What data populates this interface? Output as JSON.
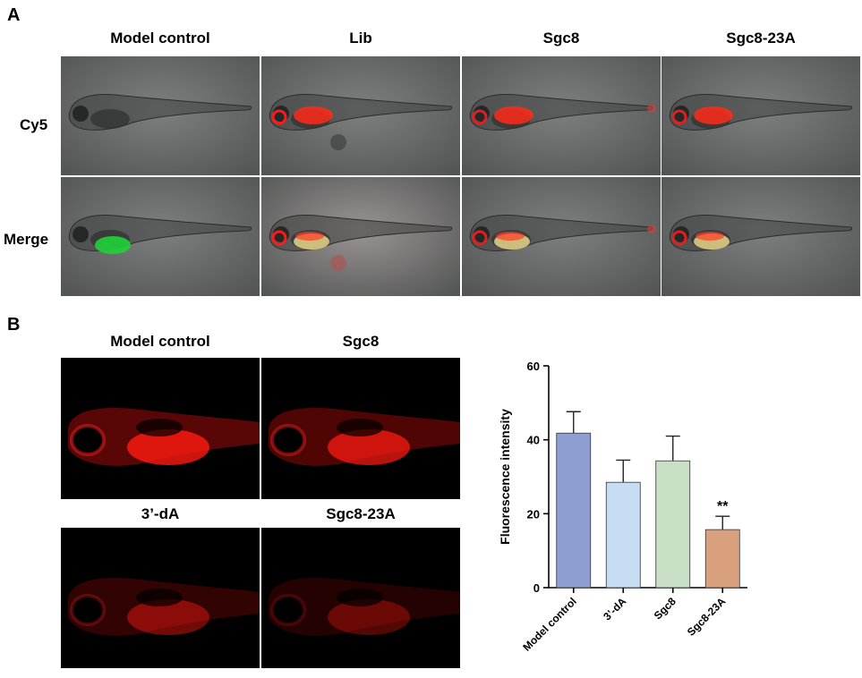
{
  "panelA": {
    "letter": "A",
    "columns": [
      "Model control",
      "Lib",
      "Sgc8",
      "Sgc8-23A"
    ],
    "rows": [
      "Cy5",
      "Merge"
    ]
  },
  "panelB": {
    "letter": "B",
    "image_labels": [
      "Model control",
      "Sgc8",
      "3’-dA",
      "Sgc8-23A"
    ]
  },
  "chart_data": {
    "type": "bar",
    "categories": [
      "Model control",
      "3’-dA",
      "Sgc8",
      "Sgc8-23A"
    ],
    "values": [
      41.8,
      28.5,
      34.3,
      15.7
    ],
    "errors": [
      5.8,
      6.0,
      6.7,
      3.6
    ],
    "colors": [
      "#8f9ed1",
      "#c6ddf3",
      "#c9e0c7",
      "#d9a07e"
    ],
    "ylabel": "Fluorescence intensity",
    "ylim": [
      0,
      60
    ],
    "yticks": [
      "0",
      "20",
      "40",
      "60"
    ],
    "annotations": [
      {
        "category": "Sgc8-23A",
        "text": "**"
      }
    ]
  }
}
